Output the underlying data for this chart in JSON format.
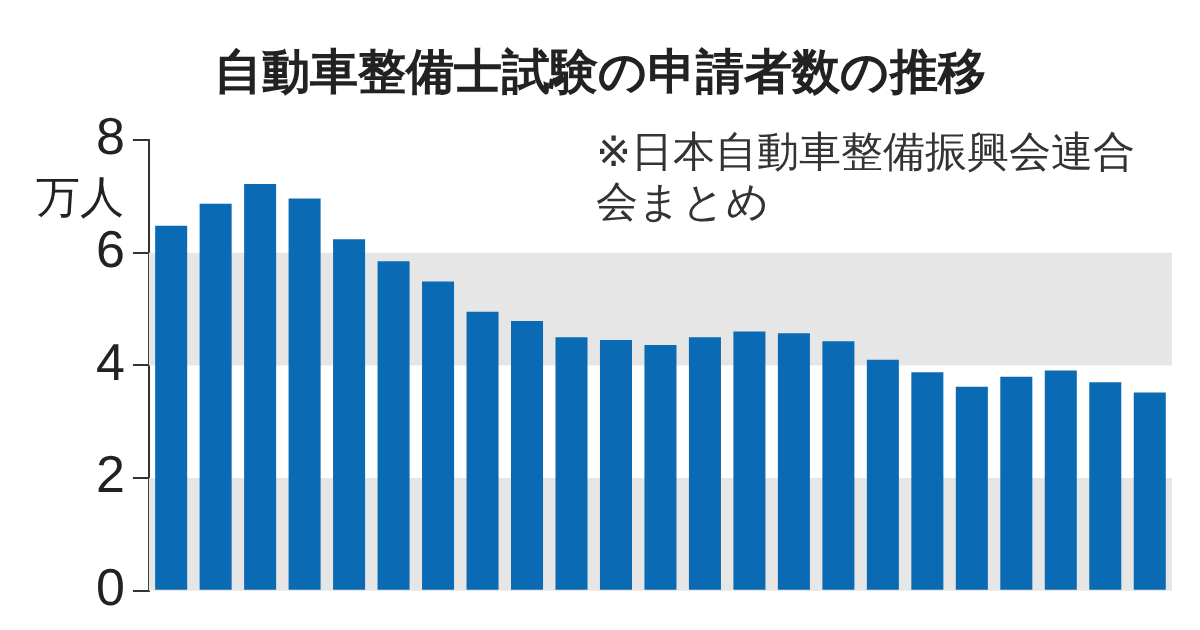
{
  "chart_data": {
    "type": "bar",
    "title": "自動車整備士試験の申請者数の推移",
    "ylabel": "万人",
    "annotations": [
      "※日本自動車整備振興会連合会まとめ"
    ],
    "categories": [
      null,
      null,
      null,
      null,
      null,
      null,
      null,
      null,
      null,
      null,
      null,
      null,
      null,
      null,
      null,
      null,
      null,
      null,
      null,
      null,
      null,
      null,
      null
    ],
    "values": [
      6.48,
      6.87,
      7.22,
      6.96,
      6.24,
      5.85,
      5.49,
      4.95,
      4.79,
      4.5,
      4.45,
      4.36,
      4.5,
      4.6,
      4.57,
      4.43,
      4.1,
      3.88,
      3.62,
      3.8,
      3.91,
      3.7,
      3.52
    ],
    "color": "#0a6ab4",
    "ylim": [
      0,
      8
    ],
    "yticks": [
      0,
      2,
      4,
      6,
      8
    ],
    "bands": [
      {
        "axis": "y",
        "from": 0,
        "to": 2,
        "color": "#e6e6e6"
      },
      {
        "axis": "y",
        "from": 4,
        "to": 6,
        "color": "#e6e6e6"
      }
    ],
    "grid": false,
    "legend": false,
    "tick_labels": "y"
  }
}
